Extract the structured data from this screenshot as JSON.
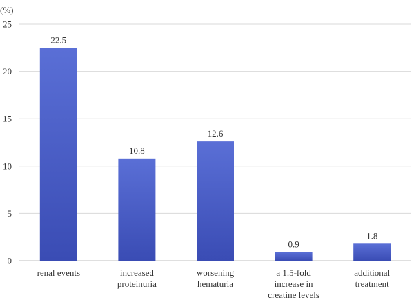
{
  "chart_data": {
    "type": "bar",
    "title": "",
    "xlabel": "",
    "ylabel": "(%)",
    "categories": [
      [
        "renal events"
      ],
      [
        "increased",
        "proteinuria"
      ],
      [
        "worsening",
        "hematuria"
      ],
      [
        "a 1.5-fold",
        "increase in",
        "creatine levels"
      ],
      [
        "additional",
        "treatment"
      ]
    ],
    "values": [
      22.5,
      10.8,
      12.6,
      0.9,
      1.8
    ],
    "value_labels": [
      "22.5",
      "10.8",
      "12.6",
      "0.9",
      "1.8"
    ],
    "ylim": [
      0,
      25
    ],
    "yticks": [
      0,
      5,
      10,
      15,
      20,
      25
    ],
    "grid": true,
    "legend": "none",
    "bar_color_top": "#5a6fd6",
    "bar_color_bottom": "#3a4cb4",
    "grid_color": "#d9d9d9",
    "axis_color": "#bfbfbf"
  }
}
